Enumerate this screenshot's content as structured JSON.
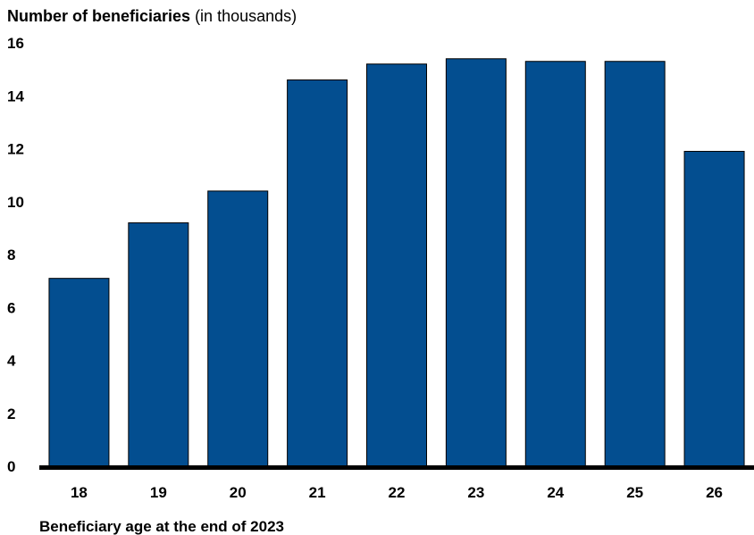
{
  "chart_data": {
    "type": "bar",
    "title": "Number of beneficiaries",
    "title_unit": "(in thousands)",
    "xlabel": "Beneficiary age at the end of 2023",
    "ylabel": "",
    "categories": [
      "18",
      "19",
      "20",
      "21",
      "22",
      "23",
      "24",
      "25",
      "26"
    ],
    "values": [
      7.1,
      9.2,
      10.4,
      14.6,
      15.2,
      15.4,
      15.3,
      15.3,
      11.9
    ],
    "ylim": [
      0,
      16
    ],
    "yticks": [
      "0",
      "2",
      "4",
      "6",
      "8",
      "10",
      "12",
      "14",
      "16"
    ],
    "bar_color": "#034e90",
    "grid": false,
    "legend": "none"
  }
}
